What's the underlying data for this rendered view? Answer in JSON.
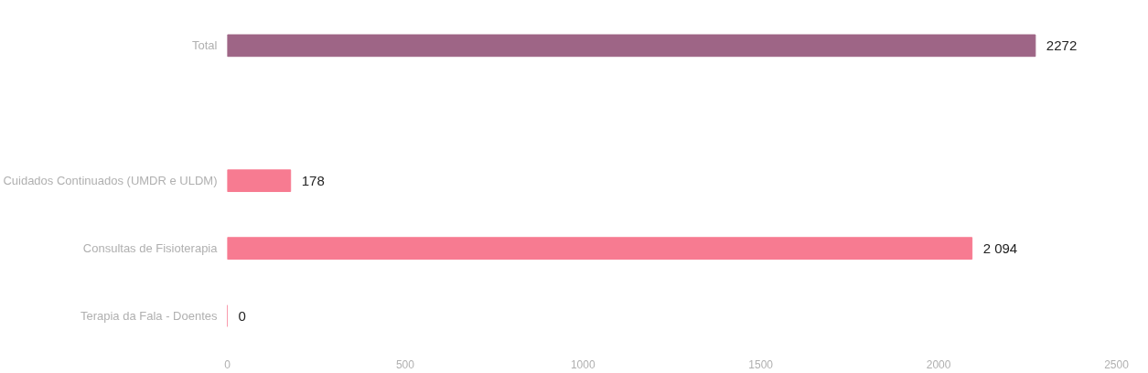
{
  "chart_data": {
    "type": "bar",
    "orientation": "horizontal",
    "categories": [
      "Total",
      null,
      "Cuidados Continuados (UMDR e ULDM)",
      "Consultas de Fisioterapia",
      "Terapia da Fala - Doentes"
    ],
    "values": [
      2272,
      null,
      178,
      2094,
      0
    ],
    "colors": [
      "#9e6586",
      "#f27d92",
      "#f77b91",
      "#f77b91",
      "#f77b91"
    ],
    "value_labels": [
      "2272",
      null,
      "178",
      "2 094",
      "0"
    ],
    "xlim": [
      0,
      2500
    ],
    "xticks": [
      0,
      500,
      1000,
      1500,
      2000,
      2500
    ],
    "grid": false
  }
}
